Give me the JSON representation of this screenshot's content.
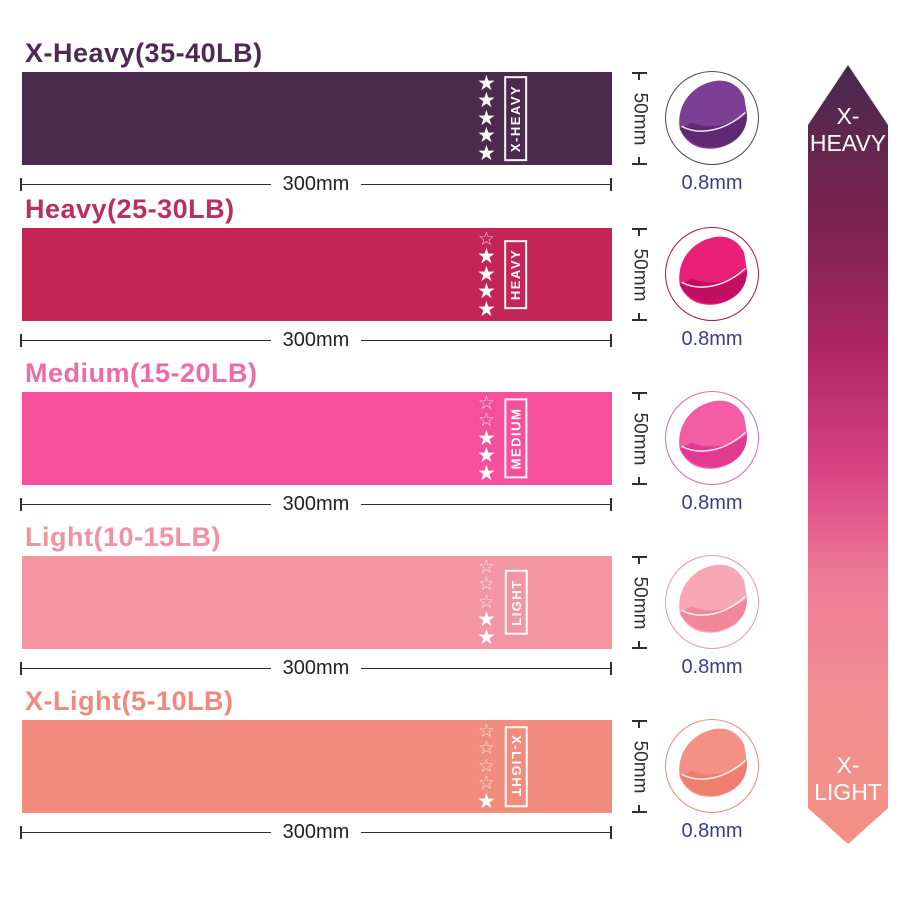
{
  "page": {
    "background": "#ffffff",
    "dimension_color": "#2f2f2f",
    "thickness_text_color": "#3c3c8f"
  },
  "rows": [
    {
      "title": "X-Heavy(35-40LB)",
      "title_color": "#4e2a53",
      "band_color": "#4a2b4d",
      "band_label": "X-HEAVY",
      "stars_total": 5,
      "stars_filled": 5,
      "width_label": "300mm",
      "height_label": "50mm",
      "thickness_label": "0.8mm",
      "fold_main": "#7d3f94",
      "fold_dark": "#5e2a72",
      "circle_border": "#4a4a4a",
      "label_upside_down": false
    },
    {
      "title": "Heavy(25-30LB)",
      "title_color": "#b93060",
      "band_color": "#c42557",
      "band_label": "HEAVY",
      "stars_total": 5,
      "stars_filled": 4,
      "width_label": "300mm",
      "height_label": "50mm",
      "thickness_label": "0.8mm",
      "fold_main": "#e91f78",
      "fold_dark": "#c40e63",
      "circle_border": "#a2184c",
      "label_upside_down": false
    },
    {
      "title": "Medium(15-20LB)",
      "title_color": "#ee6ca5",
      "band_color": "#f6509c",
      "band_label": "MEDIUM",
      "stars_total": 5,
      "stars_filled": 3,
      "width_label": "300mm",
      "height_label": "50mm",
      "thickness_label": "0.8mm",
      "fold_main": "#f45ca4",
      "fold_dark": "#e13a8e",
      "circle_border": "#e06aa5",
      "label_upside_down": false
    },
    {
      "title": "Light(10-15LB)",
      "title_color": "#f092a2",
      "band_color": "#f495a3",
      "band_label": "LIGHT",
      "stars_total": 5,
      "stars_filled": 2,
      "width_label": "300mm",
      "height_label": "50mm",
      "thickness_label": "0.8mm",
      "fold_main": "#f8a7b4",
      "fold_dark": "#f2879a",
      "circle_border": "#eb9aa8",
      "label_upside_down": false
    },
    {
      "title": "X-Light(5-10LB)",
      "title_color": "#ee8b7d",
      "band_color": "#f28d7e",
      "band_label": "X-LIGHT",
      "stars_total": 5,
      "stars_filled": 1,
      "width_label": "300mm",
      "height_label": "50mm",
      "thickness_label": "0.8mm",
      "fold_main": "#f59184",
      "fold_dark": "#ee7e6f",
      "circle_border": "#ea8c7f",
      "label_upside_down": true
    }
  ],
  "scale_arrow": {
    "top_label_lines": [
      "X-",
      "HEAVY"
    ],
    "bottom_label_lines": [
      "X-",
      "LIGHT"
    ],
    "gradient_stops": [
      "#472a4e 0%",
      "#7c234f 20%",
      "#b02766 37%",
      "#d84383 52%",
      "#ee7b97 66%",
      "#f28f92 82%",
      "#f39083 100%"
    ]
  }
}
